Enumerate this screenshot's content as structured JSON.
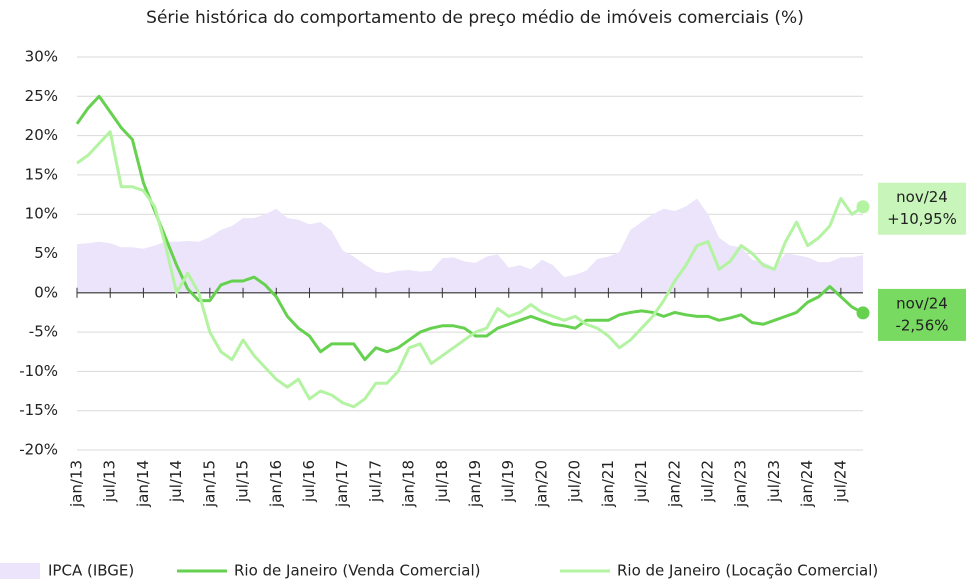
{
  "chart_data": {
    "type": "line",
    "title": "Série histórica do comportamento de preço médio de imóveis comerciais (%)",
    "categories": [
      "jan/13",
      null,
      null,
      "jul/13",
      null,
      null,
      "jan/14",
      null,
      null,
      "jul/14",
      null,
      null,
      "jan/15",
      null,
      null,
      "jul/15",
      null,
      null,
      "jan/16",
      null,
      null,
      "jul/16",
      null,
      null,
      "jan/17",
      null,
      null,
      "jul/17",
      null,
      null,
      "jan/18",
      null,
      null,
      "jul/18",
      null,
      null,
      "jan/19",
      null,
      null,
      "jul/19",
      null,
      null,
      "jan/20",
      null,
      null,
      "jul/20",
      null,
      null,
      "jan/21",
      null,
      null,
      "jul/21",
      null,
      null,
      "jan/22",
      null,
      null,
      "jul/22",
      null,
      null,
      "jan/23",
      null,
      null,
      "jul/23",
      null,
      null,
      "jan/24",
      null,
      null,
      "jul/24",
      null,
      null
    ],
    "series": [
      {
        "name": "IPCA (IBGE)",
        "kind": "area",
        "color": "#ebe4fa",
        "values": [
          6.2,
          6.3,
          6.5,
          6.3,
          5.8,
          5.8,
          5.6,
          6,
          6.5,
          6.5,
          6.6,
          6.5,
          7.1,
          8,
          8.5,
          9.5,
          9.5,
          10,
          10.7,
          9.5,
          9.3,
          8.7,
          9,
          7.9,
          5.4,
          4.6,
          3.6,
          2.7,
          2.5,
          2.8,
          2.9,
          2.7,
          2.8,
          4.4,
          4.5,
          4,
          3.8,
          4.6,
          4.9,
          3.2,
          3.5,
          3,
          4.2,
          3.5,
          2,
          2.3,
          2.8,
          4.3,
          4.6,
          5.2,
          8,
          9,
          10,
          10.7,
          10.4,
          11,
          12,
          10,
          7,
          6,
          5.8,
          4.2,
          3.9,
          3.2,
          5,
          4.8,
          4.5,
          3.9,
          3.9,
          4.5,
          4.5,
          4.8
        ]
      },
      {
        "name": "Rio de Janeiro (Venda Comercial)",
        "kind": "line",
        "color": "#66d14f",
        "values": [
          21.5,
          23.5,
          25,
          23,
          21,
          19.5,
          14,
          10.5,
          7,
          3.5,
          0.5,
          -1,
          -1,
          1,
          1.5,
          1.5,
          2,
          1,
          -0.5,
          -3,
          -4.5,
          -5.5,
          -7.5,
          -6.5,
          -6.5,
          -6.5,
          -8.5,
          -7,
          -7.5,
          -7,
          -6,
          -5,
          -4.5,
          -4.2,
          -4.2,
          -4.5,
          -5.5,
          -5.5,
          -4.5,
          -4,
          -3.5,
          -3,
          -3.5,
          -4,
          -4.2,
          -4.5,
          -3.5,
          -3.5,
          -3.5,
          -2.8,
          -2.5,
          -2.3,
          -2.5,
          -3,
          -2.5,
          -2.8,
          -3,
          -3,
          -3.5,
          -3.2,
          -2.8,
          -3.8,
          -4,
          -3.5,
          -3,
          -2.5,
          -1.2,
          -0.5,
          0.8,
          -0.5,
          -1.8,
          -2.56
        ]
      },
      {
        "name": "Rio de Janeiro (Locação Comercial)",
        "kind": "line",
        "color": "#b3f3a1",
        "values": [
          16.5,
          17.5,
          19,
          20.5,
          13.5,
          13.5,
          13,
          11,
          6,
          0,
          2.5,
          0,
          -5,
          -7.5,
          -8.5,
          -6,
          -8,
          -9.5,
          -11,
          -12,
          -11,
          -13.5,
          -12.5,
          -13,
          -14,
          -14.5,
          -13.5,
          -11.5,
          -11.5,
          -10,
          -7,
          -6.5,
          -9,
          -8,
          -7,
          -6,
          -5,
          -4.5,
          -2,
          -3,
          -2.5,
          -1.5,
          -2.5,
          -3,
          -3.5,
          -3,
          -4,
          -4.5,
          -5.5,
          -7,
          -6,
          -4.5,
          -3,
          -1,
          1.5,
          3.5,
          6,
          6.5,
          3,
          4,
          6,
          5,
          3.5,
          3,
          6.5,
          9,
          6,
          7,
          8.5,
          12,
          10,
          10.95
        ]
      }
    ],
    "annotations": [
      [
        "nov/24",
        "+10,95%"
      ],
      [
        "nov/24",
        "-2,56%"
      ]
    ],
    "ylim": [
      -20,
      30
    ],
    "yticks": [
      {
        "value": -20,
        "label": "-20%"
      },
      {
        "value": -15,
        "label": "-15%"
      },
      {
        "value": -10,
        "label": "-10%"
      },
      {
        "value": -5,
        "label": "-5%"
      },
      {
        "value": 0,
        "label": "0%"
      },
      {
        "value": 5,
        "label": "5%"
      },
      {
        "value": 10,
        "label": "10%"
      },
      {
        "value": 15,
        "label": "15%"
      },
      {
        "value": 20,
        "label": "20%"
      },
      {
        "value": 25,
        "label": "25%"
      },
      {
        "value": 30,
        "label": "30%"
      }
    ],
    "grid": true
  }
}
